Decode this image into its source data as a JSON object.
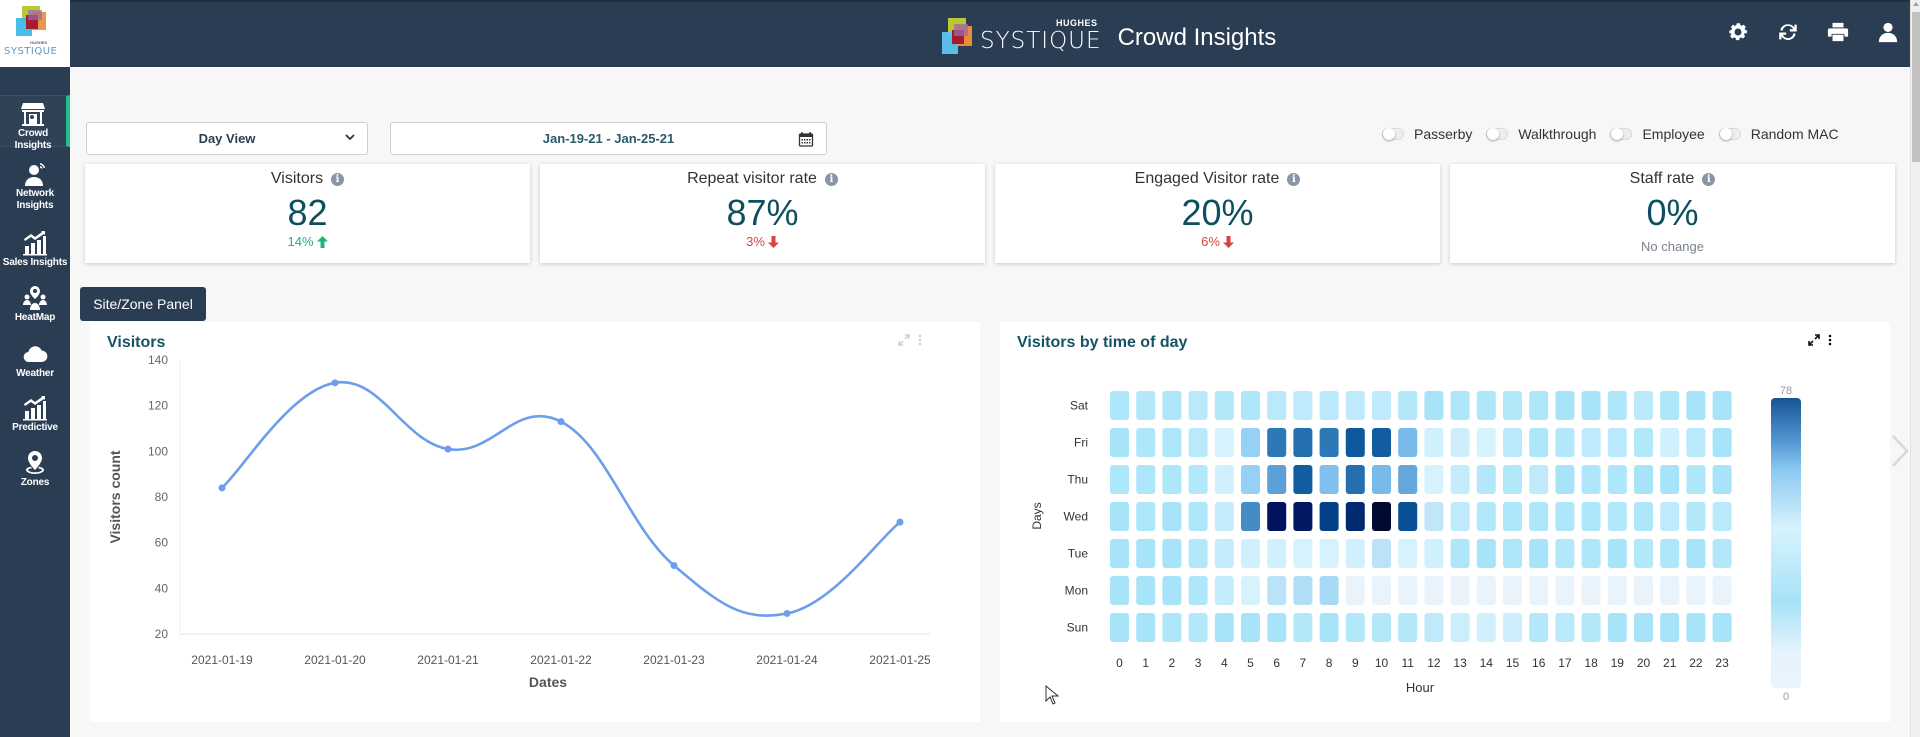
{
  "app": {
    "logo_word": "SYSTIQUE",
    "logo_hughes": "HUGHES",
    "title": "Crowd Insights",
    "brand_colors": {
      "header": "#2b3d52",
      "accent": "#1fbf8f",
      "title_teal": "#175463"
    }
  },
  "header_icons": [
    {
      "name": "settings-icon",
      "label": "Settings"
    },
    {
      "name": "refresh-icon",
      "label": "Refresh"
    },
    {
      "name": "print-icon",
      "label": "Print"
    },
    {
      "name": "user-icon",
      "label": "User"
    }
  ],
  "sidebar": {
    "items": [
      {
        "id": "crowd-insights",
        "label": "Crowd Insights",
        "icon": "storefront-icon",
        "active": true
      },
      {
        "id": "network-insights",
        "label": "Network Insights",
        "icon": "person-wifi-icon",
        "active": false
      },
      {
        "id": "sales-insights",
        "label": "Sales Insights",
        "icon": "bar-chart-trend-icon",
        "active": false
      },
      {
        "id": "heatmap",
        "label": "HeatMap",
        "icon": "map-pin-people-icon",
        "active": false
      },
      {
        "id": "weather",
        "label": "Weather",
        "icon": "cloud-icon",
        "active": false
      },
      {
        "id": "predictive",
        "label": "Predictive",
        "icon": "bar-chart-trend-icon",
        "active": false
      },
      {
        "id": "zones",
        "label": "Zones",
        "icon": "location-pin-icon",
        "active": false
      }
    ]
  },
  "filters": {
    "view_select": {
      "value": "Day View",
      "options": [
        "Day View"
      ]
    },
    "date_range": "Jan-19-21 - Jan-25-21",
    "toggles": [
      {
        "label": "Passerby",
        "on": false
      },
      {
        "label": "Walkthrough",
        "on": false
      },
      {
        "label": "Employee",
        "on": false
      },
      {
        "label": "Random MAC",
        "on": false
      }
    ]
  },
  "kpis": [
    {
      "title": "Visitors",
      "value": "82",
      "delta": "14%",
      "direction": "up"
    },
    {
      "title": "Repeat visitor rate",
      "value": "87%",
      "delta": "3%",
      "direction": "down"
    },
    {
      "title": "Engaged Visitor rate",
      "value": "20%",
      "delta": "6%",
      "direction": "down"
    },
    {
      "title": "Staff rate",
      "value": "0%",
      "delta": "No change",
      "direction": "none"
    }
  ],
  "site_zone_button": "Site/Zone Panel",
  "chart_data": [
    {
      "type": "line",
      "title": "Visitors",
      "xlabel": "Dates",
      "ylabel": "Visitors count",
      "categories": [
        "2021-01-19",
        "2021-01-20",
        "2021-01-21",
        "2021-01-22",
        "2021-01-23",
        "2021-01-24",
        "2021-01-25"
      ],
      "series": [
        {
          "name": "Visitors",
          "values": [
            84,
            130,
            101,
            113,
            50,
            29,
            69
          ],
          "color": "#6d9eeb"
        }
      ],
      "ylim": [
        20,
        140
      ],
      "yticks": [
        20,
        40,
        60,
        80,
        100,
        120,
        140
      ],
      "grid": false,
      "smooth": true
    },
    {
      "type": "heatmap",
      "title": "Visitors by time of day",
      "xlabel": "Hour",
      "ylabel": "Days",
      "x": [
        "0",
        "1",
        "2",
        "3",
        "4",
        "5",
        "6",
        "7",
        "8",
        "9",
        "10",
        "11",
        "12",
        "13",
        "14",
        "15",
        "16",
        "17",
        "18",
        "19",
        "20",
        "21",
        "22",
        "23"
      ],
      "y": [
        "Sat",
        "Fri",
        "Thu",
        "Wed",
        "Tue",
        "Mon",
        "Sun"
      ],
      "values": [
        [
          13,
          14,
          13,
          15,
          14,
          13,
          15,
          16,
          15,
          16,
          16,
          14,
          12,
          13,
          13,
          14,
          13,
          12,
          12,
          13,
          15,
          13,
          12,
          12
        ],
        [
          12,
          13,
          13,
          15,
          20,
          28,
          50,
          52,
          50,
          57,
          56,
          32,
          19,
          21,
          20,
          15,
          13,
          14,
          16,
          15,
          14,
          19,
          15,
          12
        ],
        [
          13,
          13,
          13,
          14,
          19,
          28,
          40,
          56,
          31,
          52,
          32,
          38,
          20,
          17,
          14,
          14,
          16,
          12,
          13,
          13,
          12,
          12,
          13,
          12
        ],
        [
          12,
          13,
          12,
          13,
          17,
          45,
          72,
          71,
          64,
          68,
          78,
          60,
          23,
          16,
          14,
          13,
          13,
          13,
          13,
          11,
          13,
          16,
          14,
          15
        ],
        [
          12,
          12,
          12,
          14,
          17,
          19,
          19,
          20,
          20,
          19,
          24,
          20,
          19,
          13,
          12,
          13,
          12,
          14,
          13,
          12,
          11,
          13,
          12,
          14
        ],
        [
          12,
          12,
          12,
          13,
          17,
          20,
          24,
          25,
          26,
          4,
          4,
          4,
          4,
          3,
          3,
          3,
          3,
          3,
          3,
          3,
          3,
          3,
          3,
          3
        ],
        [
          12,
          12,
          13,
          14,
          12,
          12,
          12,
          11,
          12,
          11,
          14,
          14,
          16,
          18,
          19,
          21,
          11,
          15,
          11,
          12,
          12,
          12,
          12,
          12
        ]
      ],
      "scale": {
        "min": 0,
        "max": 78,
        "min_label": "0",
        "max_label": "78"
      },
      "legend": "right"
    }
  ]
}
